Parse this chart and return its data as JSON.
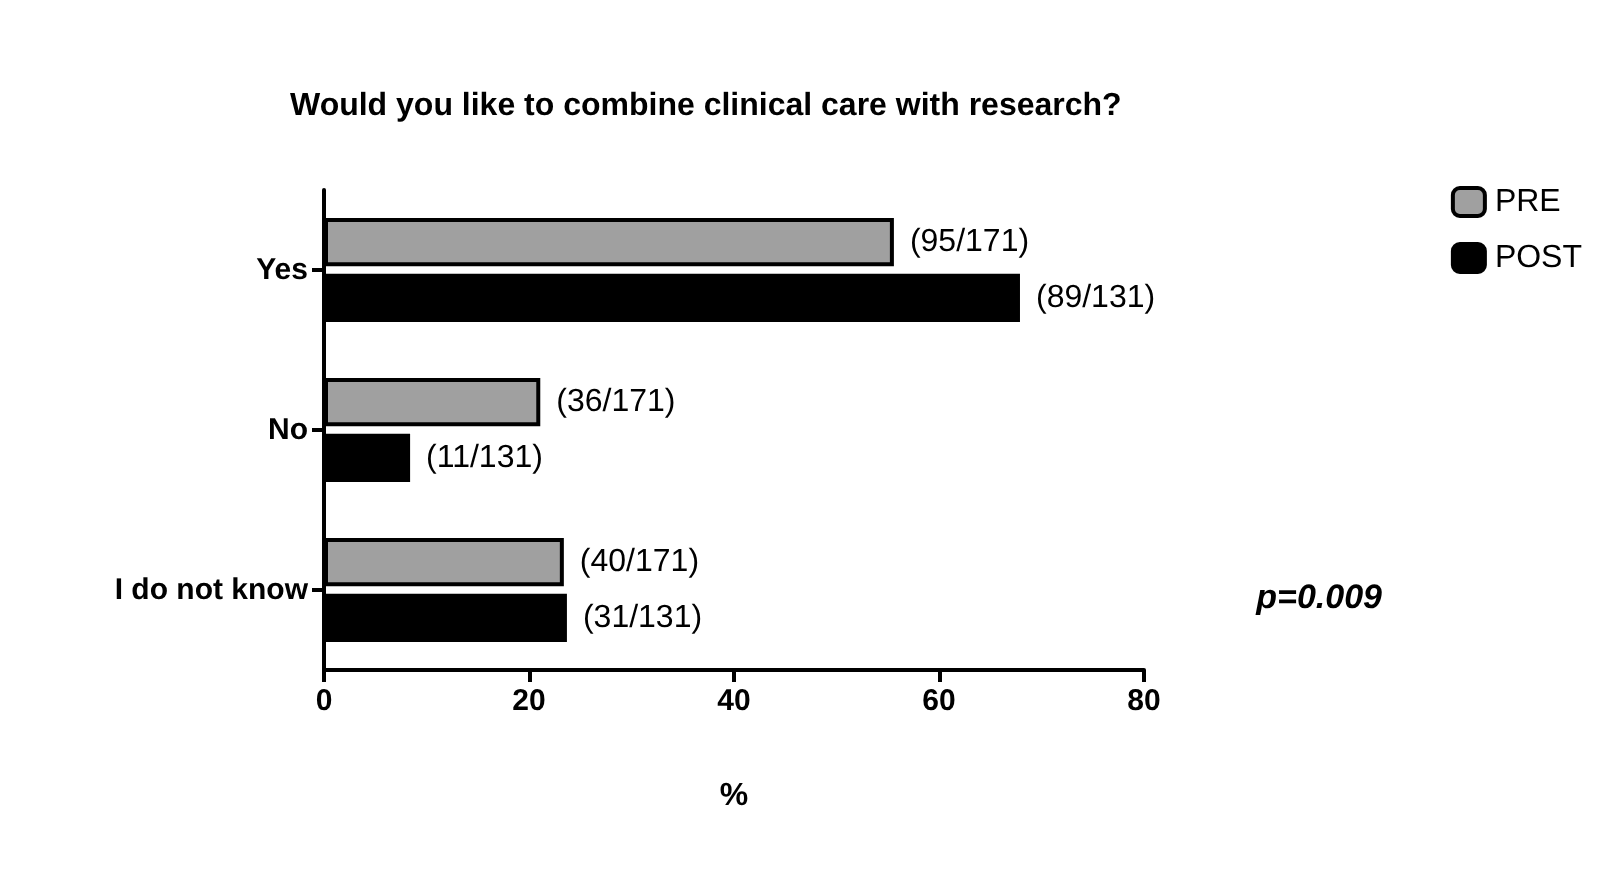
{
  "chart_data": {
    "type": "bar",
    "orientation": "horizontal",
    "title": "Would you like to combine clinical care with research?",
    "xlabel": "%",
    "categories": [
      "Yes",
      "No",
      "I do not know"
    ],
    "series": [
      {
        "name": "PRE",
        "color": "#a0a0a0",
        "values": [
          55.6,
          21.1,
          23.4
        ],
        "value_labels": [
          "(95/171)",
          "(36/171)",
          "(40/171)"
        ]
      },
      {
        "name": "POST",
        "color": "#000000",
        "values": [
          67.9,
          8.4,
          23.7
        ],
        "value_labels": [
          "(89/131)",
          "(11/131)",
          "(31/131)"
        ]
      }
    ],
    "xlim": [
      0,
      80
    ],
    "xticks": [
      0,
      20,
      40,
      60,
      80
    ],
    "grid": false,
    "legend": "top right",
    "annotations": [
      "p=0.009"
    ]
  }
}
